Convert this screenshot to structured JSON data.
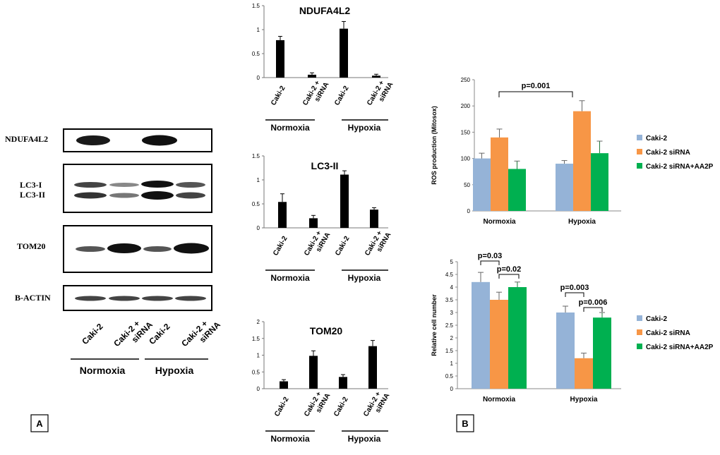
{
  "panels": {
    "a_label": "A",
    "b_label": "B"
  },
  "blot": {
    "rows": [
      {
        "label": "NDUFA4L2"
      },
      {
        "label": "LC3-I",
        "label2": "LC3-II"
      },
      {
        "label": "TOM20"
      },
      {
        "label": "B-ACTIN"
      }
    ],
    "lanes": [
      "Caki-2",
      "Caki-2 + siRNA",
      "Caki-2",
      "Caki-2 + siRNA"
    ],
    "groups": [
      "Normoxia",
      "Hypoxia"
    ]
  },
  "colors": {
    "blue": "#95B3D7",
    "orange": "#F79646",
    "green": "#00B050",
    "black": "#000000"
  },
  "chart_data": [
    {
      "type": "bar",
      "title": "NDUFA4L2",
      "categories": [
        "Caki-2",
        "Caki-2 + siRNA",
        "Caki-2",
        "Caki-2 + siRNA"
      ],
      "groups": [
        "Normoxia",
        "Hypoxia"
      ],
      "values": [
        0.78,
        0.06,
        1.02,
        0.04
      ],
      "errors": [
        0.08,
        0.04,
        0.15,
        0.03
      ],
      "ylim": [
        0,
        1.5
      ],
      "yticks": [
        "0",
        "0.5",
        "1",
        "1.5"
      ]
    },
    {
      "type": "bar",
      "title": "LC3-II",
      "categories": [
        "Caki-2",
        "Caki-2 + siRNA",
        "Caki-2",
        "Caki-2 + siRNA"
      ],
      "groups": [
        "Normoxia",
        "Hypoxia"
      ],
      "values": [
        0.54,
        0.2,
        1.11,
        0.38
      ],
      "errors": [
        0.17,
        0.06,
        0.08,
        0.04
      ],
      "ylim": [
        0,
        1.5
      ],
      "yticks": [
        "0",
        "0.5",
        "1",
        "1.5"
      ]
    },
    {
      "type": "bar",
      "title": "TOM20",
      "categories": [
        "Caki-2",
        "Caki-2 + siRNA",
        "Caki-2",
        "Caki-2 + siRNA"
      ],
      "groups": [
        "Normoxia",
        "Hypoxia"
      ],
      "values": [
        0.22,
        0.98,
        0.35,
        1.27
      ],
      "errors": [
        0.05,
        0.15,
        0.07,
        0.17
      ],
      "ylim": [
        0,
        2
      ],
      "yticks": [
        "0",
        "0.5",
        "1",
        "1.5",
        "2"
      ]
    },
    {
      "type": "bar",
      "title": "",
      "ylabel": "ROS production (Mitosox)",
      "categories": [
        "Normoxia",
        "Hypoxia"
      ],
      "series": [
        {
          "name": "Caki-2",
          "values": [
            100,
            90
          ],
          "errors": [
            10,
            6
          ]
        },
        {
          "name": "Caki-2 siRNA",
          "values": [
            140,
            190
          ],
          "errors": [
            16,
            20
          ]
        },
        {
          "name": "Caki-2 siRNA+AA2P",
          "values": [
            80,
            110
          ],
          "errors": [
            15,
            23
          ]
        }
      ],
      "ylim": [
        0,
        250
      ],
      "yticks": [
        "0",
        "50",
        "100",
        "150",
        "200",
        "250"
      ],
      "annotations": [
        "p=0.001"
      ],
      "legend": "right"
    },
    {
      "type": "bar",
      "title": "",
      "ylabel": "Relative cell number",
      "categories": [
        "Normoxia",
        "Hypoxia"
      ],
      "series": [
        {
          "name": "Caki-2",
          "values": [
            4.2,
            3.0
          ],
          "errors": [
            0.38,
            0.25
          ]
        },
        {
          "name": "Caki-2 siRNA",
          "values": [
            3.5,
            1.2
          ],
          "errors": [
            0.3,
            0.2
          ]
        },
        {
          "name": "Caki-2 siRNA+AA2P",
          "values": [
            4.0,
            2.8
          ],
          "errors": [
            0.2,
            0.2
          ]
        }
      ],
      "ylim": [
        0,
        5
      ],
      "yticks": [
        "0",
        "0.5",
        "1",
        "1.5",
        "2",
        "2.5",
        "3",
        "3.5",
        "4",
        "4.5",
        "5"
      ],
      "annotations": [
        "p=0.03",
        "p=0.02",
        "p=0.003",
        "p=0.006"
      ],
      "legend": "right"
    }
  ]
}
